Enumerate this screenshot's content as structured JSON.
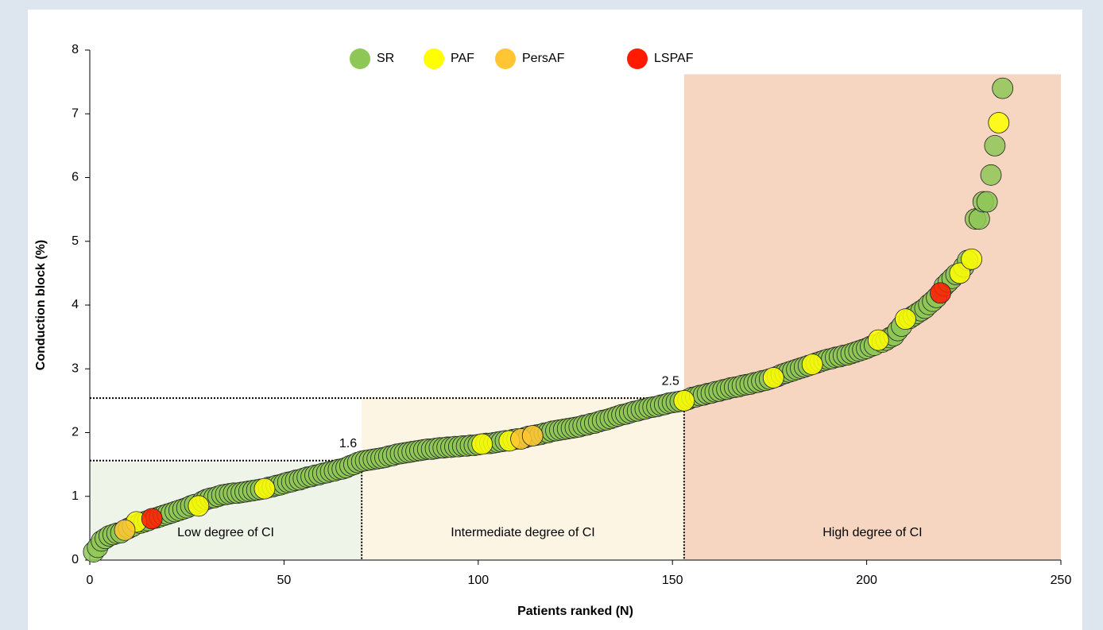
{
  "chart_data": {
    "type": "scatter",
    "xlabel": "Patients ranked (N)",
    "ylabel": "Conduction block (%)",
    "xlim": [
      0,
      250
    ],
    "xticks": [
      0,
      50,
      100,
      150,
      200,
      250
    ],
    "ylim": [
      0,
      8
    ],
    "yticks": [
      0,
      1,
      2,
      3,
      4,
      5,
      6,
      7,
      8
    ],
    "legend": "top",
    "regions": [
      {
        "label": "Low degree of CI",
        "x": [
          0,
          70
        ],
        "ymax": 1.55,
        "color": "#eef4e8"
      },
      {
        "label": "Intermediate degree of CI",
        "x": [
          70,
          153
        ],
        "ymax": 2.55,
        "color": "#fdf5e4"
      },
      {
        "label": "High degree of CI",
        "x": [
          153,
          250
        ],
        "ymax": 7.62,
        "color": "#f6d6c0"
      }
    ],
    "thresholds": [
      {
        "label": "1.6",
        "x": 70,
        "y": 1.56
      },
      {
        "label": "2.5",
        "x": 153,
        "y": 2.54
      }
    ],
    "series": [
      {
        "name": "SR",
        "color": "#8ec756",
        "x": [
          1,
          2,
          3,
          4,
          5,
          6,
          7,
          8,
          10,
          11,
          13,
          14,
          15,
          17,
          18,
          19,
          20,
          21,
          22,
          23,
          24,
          25,
          26,
          27,
          29,
          30,
          31,
          32,
          33,
          34,
          35,
          36,
          37,
          38,
          39,
          40,
          41,
          42,
          43,
          44,
          46,
          47,
          48,
          49,
          50,
          51,
          52,
          53,
          54,
          55,
          56,
          57,
          58,
          59,
          60,
          61,
          62,
          63,
          64,
          65,
          66,
          67,
          68,
          69,
          70,
          71,
          72,
          73,
          74,
          75,
          76,
          77,
          78,
          79,
          80,
          81,
          82,
          83,
          84,
          85,
          86,
          87,
          88,
          89,
          90,
          91,
          92,
          93,
          94,
          95,
          96,
          97,
          98,
          99,
          100,
          102,
          103,
          104,
          105,
          106,
          107,
          109,
          110,
          112,
          113,
          115,
          116,
          117,
          118,
          119,
          120,
          121,
          122,
          123,
          124,
          125,
          126,
          127,
          128,
          129,
          130,
          131,
          132,
          133,
          134,
          135,
          136,
          137,
          138,
          139,
          140,
          141,
          142,
          143,
          144,
          145,
          146,
          147,
          148,
          149,
          150,
          151,
          152,
          154,
          155,
          156,
          157,
          158,
          159,
          160,
          161,
          162,
          163,
          164,
          165,
          166,
          167,
          168,
          169,
          170,
          171,
          172,
          173,
          174,
          175,
          177,
          178,
          179,
          180,
          181,
          182,
          183,
          184,
          185,
          187,
          188,
          189,
          190,
          191,
          192,
          193,
          194,
          195,
          196,
          197,
          198,
          199,
          200,
          201,
          202,
          204,
          205,
          206,
          207,
          208,
          209,
          211,
          212,
          213,
          214,
          215,
          216,
          217,
          218,
          220,
          221,
          222,
          223,
          225,
          226,
          228,
          229,
          230,
          231,
          232,
          233,
          235
        ],
        "values": [
          0.13,
          0.2,
          0.3,
          0.34,
          0.38,
          0.4,
          0.42,
          0.43,
          0.5,
          0.53,
          0.58,
          0.6,
          0.62,
          0.66,
          0.68,
          0.7,
          0.72,
          0.74,
          0.76,
          0.78,
          0.8,
          0.82,
          0.85,
          0.87,
          0.92,
          0.95,
          0.97,
          0.98,
          1.0,
          1.02,
          1.03,
          1.04,
          1.05,
          1.05,
          1.06,
          1.07,
          1.08,
          1.09,
          1.1,
          1.11,
          1.14,
          1.15,
          1.17,
          1.18,
          1.2,
          1.22,
          1.23,
          1.25,
          1.26,
          1.28,
          1.3,
          1.31,
          1.33,
          1.34,
          1.36,
          1.37,
          1.39,
          1.4,
          1.42,
          1.43,
          1.45,
          1.48,
          1.5,
          1.53,
          1.55,
          1.56,
          1.57,
          1.58,
          1.59,
          1.6,
          1.61,
          1.63,
          1.64,
          1.66,
          1.67,
          1.68,
          1.69,
          1.7,
          1.71,
          1.72,
          1.73,
          1.74,
          1.74,
          1.75,
          1.76,
          1.76,
          1.77,
          1.77,
          1.78,
          1.78,
          1.79,
          1.79,
          1.8,
          1.8,
          1.81,
          1.83,
          1.83,
          1.84,
          1.85,
          1.86,
          1.87,
          1.89,
          1.9,
          1.92,
          1.94,
          1.96,
          1.97,
          1.99,
          2.0,
          2.02,
          2.03,
          2.04,
          2.05,
          2.06,
          2.07,
          2.08,
          2.09,
          2.11,
          2.12,
          2.14,
          2.15,
          2.17,
          2.19,
          2.2,
          2.22,
          2.24,
          2.26,
          2.28,
          2.29,
          2.31,
          2.33,
          2.34,
          2.36,
          2.37,
          2.39,
          2.4,
          2.41,
          2.43,
          2.44,
          2.46,
          2.47,
          2.48,
          2.49,
          2.52,
          2.55,
          2.56,
          2.58,
          2.59,
          2.61,
          2.62,
          2.64,
          2.65,
          2.67,
          2.68,
          2.7,
          2.71,
          2.72,
          2.74,
          2.75,
          2.76,
          2.78,
          2.79,
          2.81,
          2.82,
          2.84,
          2.88,
          2.91,
          2.93,
          2.95,
          2.97,
          2.99,
          3.01,
          3.03,
          3.05,
          3.09,
          3.11,
          3.13,
          3.15,
          3.16,
          3.18,
          3.19,
          3.21,
          3.22,
          3.24,
          3.26,
          3.28,
          3.3,
          3.32,
          3.35,
          3.37,
          3.42,
          3.45,
          3.49,
          3.52,
          3.6,
          3.67,
          3.79,
          3.83,
          3.87,
          3.91,
          3.95,
          4.01,
          4.06,
          4.12,
          4.3,
          4.36,
          4.42,
          4.48,
          4.6,
          4.7,
          5.35,
          5.35,
          5.62,
          5.62,
          6.04,
          6.5,
          7.4
        ]
      },
      {
        "name": "PAF",
        "color": "#ffff00",
        "x": [
          12,
          28,
          45,
          101,
          108,
          153,
          176,
          186,
          203,
          210,
          224,
          227,
          234
        ],
        "values": [
          0.6,
          0.85,
          1.12,
          1.82,
          1.87,
          2.5,
          2.86,
          3.07,
          3.45,
          3.78,
          4.5,
          4.72,
          6.86
        ]
      },
      {
        "name": "PersAF",
        "color": "#ffc533",
        "x": [
          9,
          111,
          114
        ],
        "values": [
          0.47,
          1.9,
          1.95
        ]
      },
      {
        "name": "LSPAF",
        "color": "#ff1a00",
        "x": [
          16,
          219
        ],
        "values": [
          0.65,
          4.19
        ]
      }
    ]
  }
}
